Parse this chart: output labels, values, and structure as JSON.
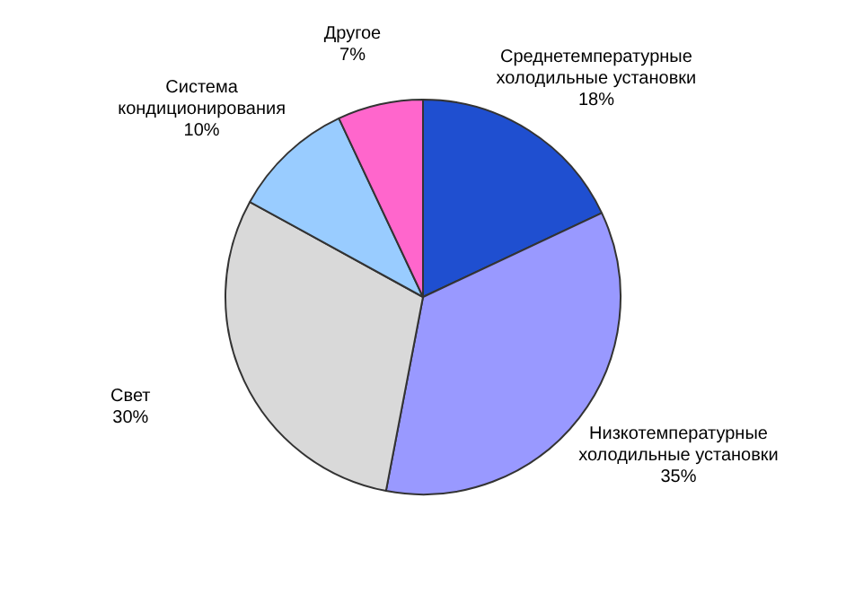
{
  "chart_data": {
    "type": "pie",
    "categories": [
      "Среднетемпературные холодильные установки",
      "Низкотемпературные холодильные установки",
      "Свет",
      "Система кондиционирования",
      "Другое"
    ],
    "values": [
      18,
      35,
      30,
      10,
      7
    ],
    "value_labels": [
      "18%",
      "35%",
      "30%",
      "10%",
      "7%"
    ],
    "colors": [
      "#1f4fd0",
      "#9999ff",
      "#d9d9d9",
      "#99ccff",
      "#ff66cc"
    ],
    "legend": false
  }
}
